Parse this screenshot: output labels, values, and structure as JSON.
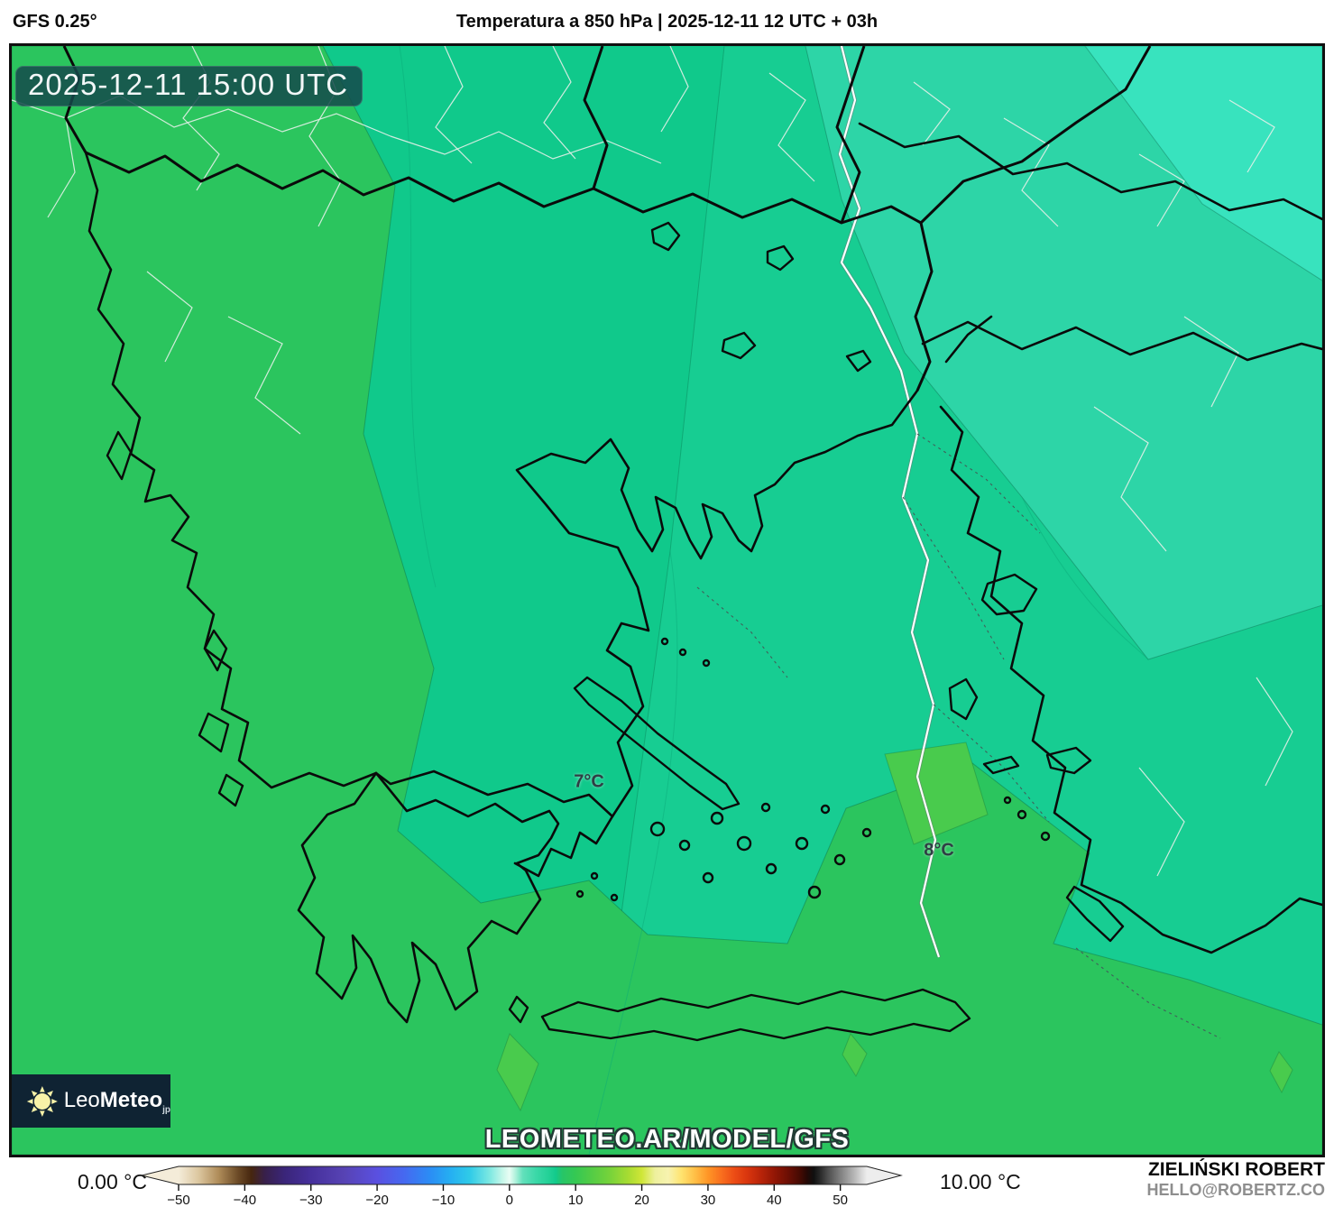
{
  "header": {
    "model": "GFS 0.25°",
    "title": "Temperatura a 850 hPa | 2025-12-11 12 UTC + 03h"
  },
  "map": {
    "timestamp_badge": "2025-12-11 15:00 UTC",
    "temp_labels": [
      {
        "text": "7°C"
      },
      {
        "text": "8°C"
      }
    ],
    "watermark": "LEOMETEO.AR/MODEL/GFS",
    "logo": {
      "prefix": "Leo",
      "bold": "Meteo",
      "tld": "jp"
    },
    "band_colors": {
      "t5": "#38e3be",
      "t6": "#2dd5a7",
      "t7": "#10c98b",
      "t7b": "#17cd92",
      "t8": "#2bc55e",
      "t9": "#49cb4d"
    },
    "coast_color": "#0a0a0a",
    "admin_line_color": "#e6efe9"
  },
  "colorbar": {
    "min_label": "0.00 °C",
    "max_label": "10.00 °C",
    "unit": "°C",
    "range": [
      -50,
      54
    ],
    "ticks": [
      {
        "v": -50,
        "label": "−50"
      },
      {
        "v": -40,
        "label": "−40"
      },
      {
        "v": -30,
        "label": "−30"
      },
      {
        "v": -20,
        "label": "−20"
      },
      {
        "v": -10,
        "label": "−10"
      },
      {
        "v": 0,
        "label": "0"
      },
      {
        "v": 10,
        "label": "10"
      },
      {
        "v": 20,
        "label": "20"
      },
      {
        "v": 30,
        "label": "30"
      },
      {
        "v": 40,
        "label": "40"
      },
      {
        "v": 50,
        "label": "50"
      }
    ],
    "stops": [
      {
        "v": -50,
        "c": "#f4ecd9"
      },
      {
        "v": -47,
        "c": "#dcc7a0"
      },
      {
        "v": -44,
        "c": "#b08d5a"
      },
      {
        "v": -41,
        "c": "#6b4a26"
      },
      {
        "v": -39,
        "c": "#46260f"
      },
      {
        "v": -37,
        "c": "#38204a"
      },
      {
        "v": -34,
        "c": "#3a2579"
      },
      {
        "v": -30,
        "c": "#46309c"
      },
      {
        "v": -25,
        "c": "#5743b4"
      },
      {
        "v": -20,
        "c": "#5a50e0"
      },
      {
        "v": -16,
        "c": "#4668f0"
      },
      {
        "v": -12,
        "c": "#2b8df5"
      },
      {
        "v": -9,
        "c": "#25aef2"
      },
      {
        "v": -6,
        "c": "#2fcbe8"
      },
      {
        "v": -3,
        "c": "#7ce8e2"
      },
      {
        "v": -1,
        "c": "#c8f7ea"
      },
      {
        "v": 0,
        "c": "#e9fdf4"
      },
      {
        "v": 1,
        "c": "#a9f0d9"
      },
      {
        "v": 2,
        "c": "#62e0bb"
      },
      {
        "v": 4,
        "c": "#3bd8a8"
      },
      {
        "v": 6,
        "c": "#22d196"
      },
      {
        "v": 7,
        "c": "#12ca8c"
      },
      {
        "v": 8,
        "c": "#27c567"
      },
      {
        "v": 10,
        "c": "#35c853"
      },
      {
        "v": 12,
        "c": "#4ecb47"
      },
      {
        "v": 15,
        "c": "#74d23b"
      },
      {
        "v": 18,
        "c": "#a8dc32"
      },
      {
        "v": 20,
        "c": "#cfe637"
      },
      {
        "v": 22,
        "c": "#eef09d"
      },
      {
        "v": 24,
        "c": "#f7f3b0"
      },
      {
        "v": 26,
        "c": "#ffe36e"
      },
      {
        "v": 28,
        "c": "#ffbf47"
      },
      {
        "v": 30,
        "c": "#ff9626"
      },
      {
        "v": 32,
        "c": "#f96f1e"
      },
      {
        "v": 34,
        "c": "#ec4c15"
      },
      {
        "v": 36,
        "c": "#d8350e"
      },
      {
        "v": 38,
        "c": "#b82409"
      },
      {
        "v": 40,
        "c": "#931705"
      },
      {
        "v": 42,
        "c": "#6e0f04"
      },
      {
        "v": 44,
        "c": "#430a03"
      },
      {
        "v": 45,
        "c": "#230805"
      },
      {
        "v": 46,
        "c": "#101010"
      },
      {
        "v": 47,
        "c": "#2a2a2a"
      },
      {
        "v": 48,
        "c": "#4a4a4a"
      },
      {
        "v": 50,
        "c": "#808080"
      },
      {
        "v": 52,
        "c": "#b4b4b4"
      },
      {
        "v": 54,
        "c": "#ededed"
      }
    ]
  },
  "credits": {
    "author": "ZIELIŃSKI ROBERT",
    "email": "HELLO@ROBERTZ.CO"
  }
}
